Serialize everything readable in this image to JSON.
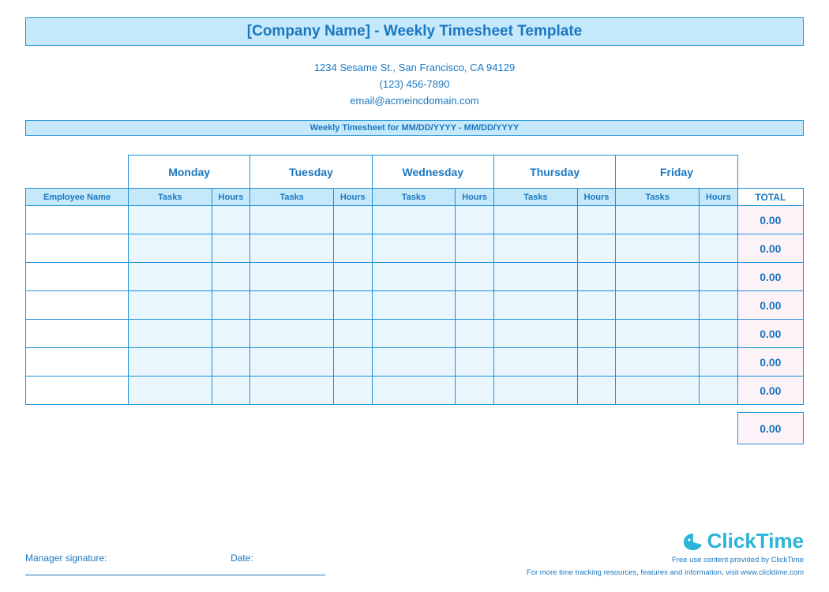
{
  "title": "[Company Name] - Weekly Timesheet Template",
  "company": {
    "address": "1234 Sesame St.,  San Francisco, CA 94129",
    "phone": "(123) 456-7890",
    "email": "email@acmeincdomain.com"
  },
  "period_label": "Weekly Timesheet for MM/DD/YYYY - MM/DD/YYYY",
  "columns": {
    "employee": "Employee Name",
    "days": [
      "Monday",
      "Tuesday",
      "Wednesday",
      "Thursday",
      "Friday"
    ],
    "sub": {
      "tasks": "Tasks",
      "hours": "Hours"
    },
    "total": "TOTAL"
  },
  "col_widths": {
    "employee": 128,
    "tasks": 104,
    "hours": 48,
    "total": 82
  },
  "rows": [
    {
      "total": "0.00"
    },
    {
      "total": "0.00"
    },
    {
      "total": "0.00"
    },
    {
      "total": "0.00"
    },
    {
      "total": "0.00"
    },
    {
      "total": "0.00"
    },
    {
      "total": "0.00"
    }
  ],
  "grand_total": "0.00",
  "signature": {
    "manager": "Manager signature:",
    "date": "Date:"
  },
  "brand": {
    "name": "ClickTime",
    "line1": "Free use content provided by ClickTime",
    "line2": "For more time tracking resources, features and information, visit www.clicktime.com"
  },
  "colors": {
    "border": "#1e90d6",
    "header_bg": "#c5e9fb",
    "data_bg": "#eaf6fd",
    "total_bg": "#fdf2f8",
    "text": "#1b77c0",
    "brand": "#29b4d8"
  }
}
